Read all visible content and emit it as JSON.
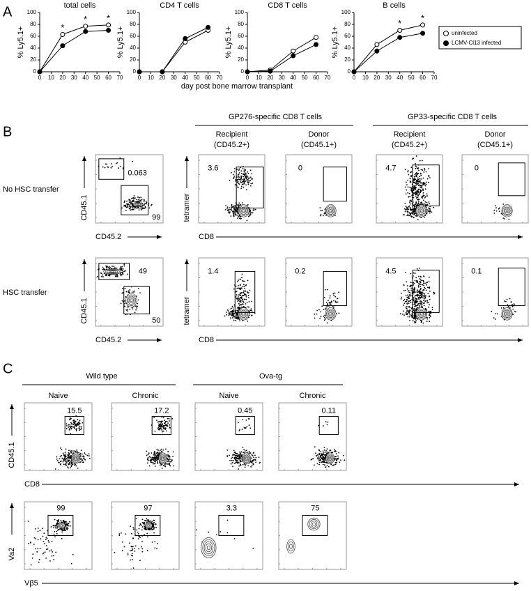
{
  "chart_data": [
    {
      "type": "line",
      "title": "total cells",
      "ylabel": "% Ly5.1+",
      "x": [
        0,
        20,
        40,
        60
      ],
      "series": [
        {
          "name": "uninfected",
          "color": "#ffffff",
          "values": [
            0,
            63,
            77,
            79
          ]
        },
        {
          "name": "LCMV-Cl13 infected",
          "color": "#000000",
          "values": [
            0,
            44,
            68,
            70
          ]
        }
      ],
      "xlim": [
        0,
        70
      ],
      "xticks": [
        0,
        10,
        20,
        30,
        40,
        50,
        60,
        70
      ],
      "ylim": [
        0,
        100
      ],
      "yticks": [
        0,
        20,
        40,
        60,
        80,
        100
      ],
      "annotations": [
        {
          "x": 20,
          "text": "*"
        },
        {
          "x": 40,
          "text": "*"
        },
        {
          "x": 60,
          "text": "*"
        }
      ]
    },
    {
      "type": "line",
      "title": "CD4 T cells",
      "ylabel": "% Ly5.1+",
      "x": [
        0,
        20,
        40,
        60
      ],
      "series": [
        {
          "name": "uninfected",
          "color": "#ffffff",
          "values": [
            0,
            0,
            50,
            70
          ]
        },
        {
          "name": "LCMV-Cl13 infected",
          "color": "#000000",
          "values": [
            0,
            0,
            56,
            75
          ]
        }
      ],
      "xlim": [
        0,
        70
      ],
      "xticks": [
        0,
        10,
        20,
        30,
        40,
        50,
        60,
        70
      ],
      "ylim": [
        0,
        100
      ],
      "yticks": [
        0,
        20,
        40,
        60,
        80,
        100
      ],
      "annotations": []
    },
    {
      "type": "line",
      "title": "CD8 T cells",
      "ylabel": "% Ly5.1+",
      "x": [
        0,
        20,
        40,
        60
      ],
      "series": [
        {
          "name": "uninfected",
          "color": "#ffffff",
          "values": [
            0,
            3,
            35,
            58
          ]
        },
        {
          "name": "LCMV-Cl13 infected",
          "color": "#000000",
          "values": [
            0,
            1,
            27,
            46
          ]
        }
      ],
      "xlim": [
        0,
        70
      ],
      "xticks": [
        0,
        10,
        20,
        30,
        40,
        50,
        60,
        70
      ],
      "ylim": [
        0,
        100
      ],
      "yticks": [
        0,
        20,
        40,
        60,
        80,
        100
      ],
      "annotations": []
    },
    {
      "type": "line",
      "title": "B cells",
      "ylabel": "% Ly5.1+",
      "x": [
        0,
        20,
        40,
        60
      ],
      "series": [
        {
          "name": "uninfected",
          "color": "#ffffff",
          "values": [
            0,
            46,
            70,
            79
          ]
        },
        {
          "name": "LCMV-Cl13 infected",
          "color": "#000000",
          "values": [
            0,
            35,
            58,
            65
          ]
        }
      ],
      "xlim": [
        0,
        70
      ],
      "xticks": [
        0,
        10,
        20,
        30,
        40,
        50,
        60,
        70
      ],
      "ylim": [
        0,
        100
      ],
      "yticks": [
        0,
        20,
        40,
        60,
        80,
        100
      ],
      "annotations": [
        {
          "x": 40,
          "text": "*"
        },
        {
          "x": 60,
          "text": "*"
        }
      ]
    }
  ],
  "panel_a": {
    "label": "A",
    "xlabel": "day post bone marrow transplant"
  },
  "panel_b": {
    "label": "B",
    "groups": [
      {
        "title": "GP276-specific CD8 T cells",
        "columns": [
          [
            "Recipient",
            "(CD45.2+)"
          ],
          [
            "Donor",
            "(CD45.1+)"
          ]
        ]
      },
      {
        "title": "GP33-specific CD8 T cells",
        "columns": [
          [
            "Recipient",
            "(CD45.2+)"
          ],
          [
            "Donor",
            "(CD45.1+)"
          ]
        ]
      }
    ],
    "rows": [
      {
        "label": "No HSC transfer",
        "chimerism": {
          "x_axis": "CD45.2",
          "y_axis": "CD45.1",
          "gates": [
            "0.063",
            "99"
          ]
        },
        "tetramer": {
          "x_axis": "CD8",
          "y_axis": "tetramer",
          "gates": [
            "3.6",
            "0",
            "4.7",
            "0"
          ]
        }
      },
      {
        "label": "HSC transfer",
        "chimerism": {
          "x_axis": "CD45.2",
          "y_axis": "CD45.1",
          "gates": [
            "49",
            "50"
          ]
        },
        "tetramer": {
          "x_axis": "CD8",
          "y_axis": "tetramer",
          "gates": [
            "1.4",
            "0.2",
            "4.5",
            "0.1"
          ]
        }
      }
    ]
  },
  "panel_c": {
    "label": "C",
    "groups": [
      {
        "title": "Wild type",
        "columns": [
          "Naive",
          "Chronic"
        ]
      },
      {
        "title": "Ova-tg",
        "columns": [
          "Naive",
          "Chronic"
        ]
      }
    ],
    "rows": [
      {
        "x_axis": "CD8",
        "y_axis": "CD45.1",
        "gates": [
          "15.5",
          "17.2",
          "0.45",
          "0.11"
        ]
      },
      {
        "x_axis": "Vβ5",
        "y_axis": "Va2",
        "gates": [
          "99",
          "97",
          "3.3",
          "75"
        ]
      }
    ]
  }
}
